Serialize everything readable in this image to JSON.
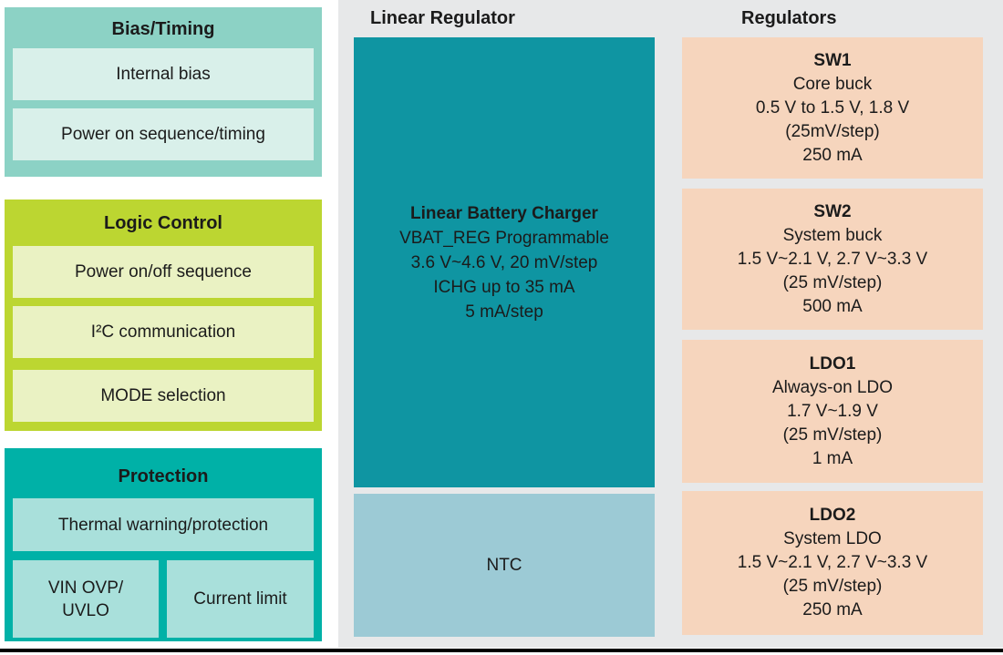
{
  "left_column": {
    "bias_timing": {
      "title": "Bias/Timing",
      "items": [
        "Internal bias",
        "Power on sequence/timing"
      ]
    },
    "logic_control": {
      "title": "Logic Control",
      "items": [
        "Power on/off sequence",
        "I²C communication",
        "MODE selection"
      ]
    },
    "protection": {
      "title": "Protection",
      "thermal": "Thermal warning/protection",
      "vin_ovp_uvlo": "VIN OVP/\nUVLO",
      "current_limit": "Current limit"
    }
  },
  "center": {
    "title": "Linear Regulator",
    "charger": {
      "title": "Linear Battery Charger",
      "lines": [
        "VBAT_REG Programmable",
        "3.6 V~4.6 V, 20 mV/step",
        "ICHG up to 35 mA",
        "5 mA/step"
      ]
    },
    "ntc": "NTC"
  },
  "right": {
    "title": "Regulators",
    "blocks": [
      {
        "name": "SW1",
        "lines": [
          "Core buck",
          "0.5 V to 1.5 V, 1.8 V",
          "(25mV/step)",
          "250 mA"
        ]
      },
      {
        "name": "SW2",
        "lines": [
          "System buck",
          "1.5 V~2.1 V, 2.7 V~3.3 V",
          "(25 mV/step)",
          "500 mA"
        ]
      },
      {
        "name": "LDO1",
        "lines": [
          "Always-on LDO",
          "1.7 V~1.9 V",
          "(25 mV/step)",
          "1 mA"
        ]
      },
      {
        "name": "LDO2",
        "lines": [
          "System LDO",
          "1.5 V~2.1 V, 2.7 V~3.3 V",
          "(25 mV/step)",
          "250 mA"
        ]
      }
    ]
  },
  "colors": {
    "bias_outer": "#8CD2C5",
    "bias_inner": "#D9F0EA",
    "logic_outer": "#BCD631",
    "logic_inner": "#EAF2C3",
    "protection_outer": "#00B1A7",
    "protection_inner": "#A9E0DB",
    "charger_box": "#0F95A2",
    "ntc_box": "#9CCAD5",
    "regulator_box": "#F6D5BD",
    "panel_background": "#E7E8E9",
    "text": "#1b1b1b",
    "bottom_rule": "#000000"
  }
}
